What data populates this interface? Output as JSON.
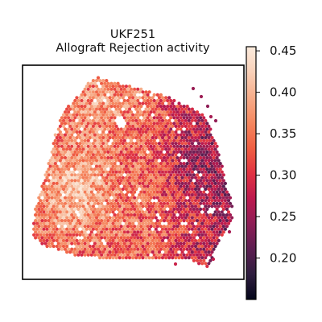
{
  "chart_data": {
    "type": "heatmap",
    "title_line1": "UKF251",
    "title_line2": "Allograft Rejection activity",
    "xlabel": "",
    "ylabel": "",
    "colorbar": {
      "colormap": "rocket",
      "vmin": 0.15,
      "vmax": 0.455,
      "ticks": [
        0.2,
        0.25,
        0.3,
        0.35,
        0.4,
        0.45
      ],
      "tick_labels": [
        "0.20",
        "0.25",
        "0.30",
        "0.35",
        "0.40",
        "0.45"
      ]
    },
    "colormap_stops": [
      "#03051a",
      "#2f1e3f",
      "#5c1e51",
      "#8e1e56",
      "#bd1a4e",
      "#e13342",
      "#f06043",
      "#f58860",
      "#f6ad8a",
      "#f9d1b9",
      "#faebdd"
    ],
    "grid": false,
    "legend": "colorbar-right",
    "regions": {
      "description_note": "",
      "high_activity_area": "left-center",
      "low_activity_area": "right side",
      "typical_range": [
        0.28,
        0.42
      ]
    }
  }
}
